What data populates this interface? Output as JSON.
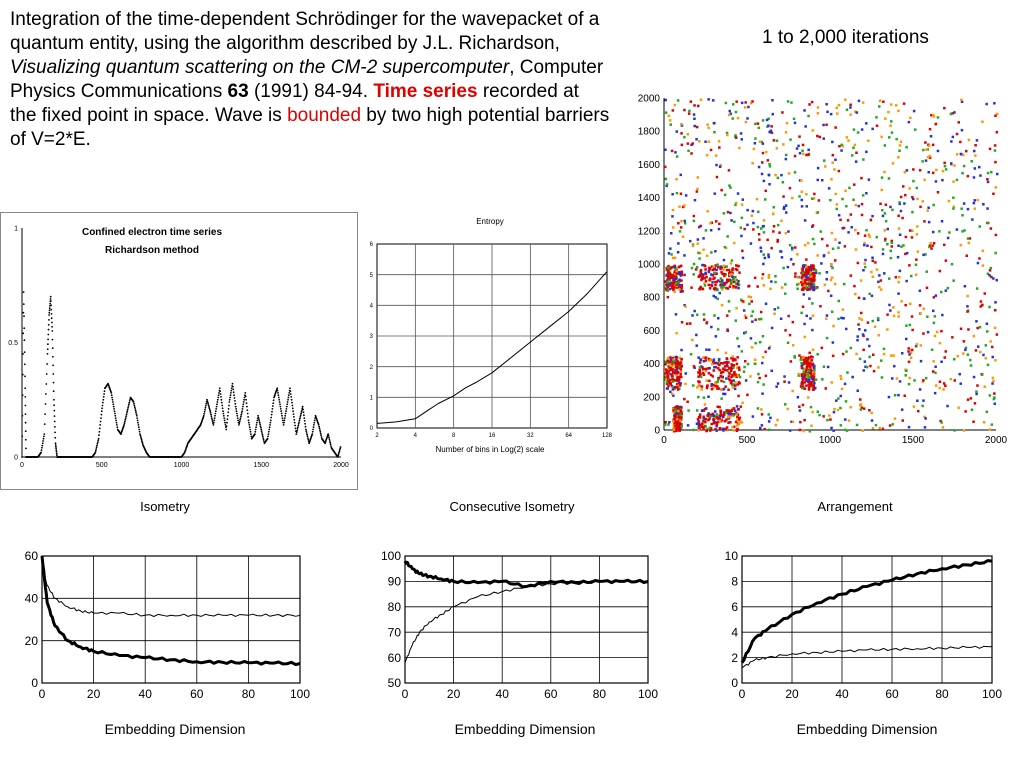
{
  "intro": {
    "p1": "Integration of the time-dependent Schrödinger for the wavepacket of a quantum entity, using the algorithm described by J.L. Richardson, ",
    "p2_italic": "Visualizing quantum scattering on the CM-2 supercomputer",
    "p3": ", Computer Physics Communications ",
    "p4_bold": "63",
    "p5": " (1991) 84-94. ",
    "p6_boldred": "Time series",
    "p7": " recorded at the fixed point in space. Wave is ",
    "p8_red": "bounded",
    "p9": " by two high potential barriers of V=2*E."
  },
  "iterations_label": "1 to 2,000 iterations",
  "colors": {
    "red": "#e00000",
    "green": "#22aa22",
    "blue": "#2233dd",
    "orange": "#ff9900"
  },
  "chart_data": [
    {
      "type": "line",
      "id": "timeseries",
      "title": "Confined electron time series",
      "subtitle": "Richardson method",
      "x_ticks": [
        "0",
        "500",
        "1000",
        "1500",
        "2000"
      ],
      "y_ticks": [
        "0",
        "0.5",
        "1"
      ],
      "xlim": [
        0,
        2000
      ],
      "ylim": [
        0,
        1
      ],
      "series": [
        {
          "x": [
            0,
            10,
            20,
            25,
            30,
            40,
            60,
            80,
            100,
            120,
            140,
            160,
            170,
            180,
            190,
            200,
            210,
            220,
            230,
            240,
            260,
            280,
            300,
            320,
            340,
            360,
            380,
            400,
            420,
            440,
            460,
            480,
            500,
            520,
            540,
            560,
            580,
            600,
            620,
            640,
            660,
            680,
            700,
            720,
            740,
            760,
            780,
            800,
            820,
            840,
            860,
            880,
            900,
            920,
            940,
            960,
            980,
            1000,
            1020,
            1040,
            1060,
            1080,
            1100,
            1120,
            1140,
            1160,
            1180,
            1200,
            1220,
            1240,
            1260,
            1280,
            1300,
            1320,
            1340,
            1360,
            1380,
            1400,
            1420,
            1440,
            1460,
            1480,
            1500,
            1520,
            1540,
            1560,
            1580,
            1600,
            1620,
            1640,
            1660,
            1680,
            1700,
            1720,
            1740,
            1760,
            1780,
            1800,
            1820,
            1840,
            1860,
            1880,
            1900,
            1920,
            1940,
            1960,
            1980,
            2000
          ],
          "y": [
            0,
            0.72,
            0.3,
            0.0,
            0,
            0,
            0,
            0,
            0,
            0.02,
            0.1,
            0.45,
            0.62,
            0.7,
            0.55,
            0.25,
            0.06,
            0,
            0,
            0,
            0,
            0,
            0,
            0,
            0,
            0,
            0,
            0,
            0,
            0,
            0.02,
            0.08,
            0.2,
            0.3,
            0.32,
            0.28,
            0.2,
            0.12,
            0.1,
            0.14,
            0.2,
            0.26,
            0.24,
            0.18,
            0.1,
            0.05,
            0.02,
            0,
            0,
            0,
            0,
            0,
            0,
            0,
            0,
            0,
            0,
            0,
            0.02,
            0.06,
            0.08,
            0.1,
            0.12,
            0.14,
            0.18,
            0.25,
            0.2,
            0.14,
            0.22,
            0.3,
            0.2,
            0.12,
            0.24,
            0.32,
            0.22,
            0.14,
            0.2,
            0.28,
            0.16,
            0.08,
            0.1,
            0.18,
            0.12,
            0.06,
            0.08,
            0.16,
            0.26,
            0.3,
            0.22,
            0.14,
            0.22,
            0.3,
            0.2,
            0.1,
            0.16,
            0.22,
            0.12,
            0.06,
            0.1,
            0.18,
            0.14,
            0.08,
            0.06,
            0.1,
            0.04,
            0.02,
            0.0,
            0.05
          ]
        }
      ]
    },
    {
      "type": "line",
      "id": "entropy",
      "title": "Entropy",
      "xlabel": "Number of bins in Log(2) scale",
      "x_ticks": [
        "2",
        "4",
        "8",
        "16",
        "32",
        "64",
        "128"
      ],
      "y_ticks": [
        "0",
        "1",
        "2",
        "3",
        "4",
        "5",
        "6"
      ],
      "xlim": [
        1,
        7
      ],
      "ylim": [
        0,
        6
      ],
      "series": [
        {
          "x": [
            1,
            1.5,
            2,
            2.3,
            2.6,
            3,
            3.3,
            3.6,
            4,
            4.5,
            5,
            5.5,
            6,
            6.5,
            7
          ],
          "y": [
            0.15,
            0.2,
            0.3,
            0.55,
            0.8,
            1.05,
            1.3,
            1.5,
            1.8,
            2.3,
            2.8,
            3.3,
            3.8,
            4.4,
            5.1
          ]
        }
      ]
    },
    {
      "type": "scatter",
      "id": "recurrence",
      "x_ticks": [
        "0",
        "500",
        "1000",
        "1500",
        "2000"
      ],
      "y_ticks": [
        "0",
        "200",
        "400",
        "600",
        "800",
        "1000",
        "1200",
        "1400",
        "1600",
        "1800",
        "2000"
      ],
      "xlim": [
        0,
        2000
      ],
      "ylim": [
        0,
        2000
      ],
      "series_colors": [
        "red",
        "green",
        "blue",
        "orange"
      ]
    },
    {
      "type": "line",
      "id": "isometry",
      "title": "Isometry",
      "xlabel": "Embedding Dimension",
      "x_ticks": [
        "0",
        "20",
        "40",
        "60",
        "80",
        "100"
      ],
      "y_ticks": [
        "0",
        "20",
        "40",
        "60"
      ],
      "xlim": [
        0,
        100
      ],
      "ylim": [
        0,
        60
      ],
      "series": [
        {
          "x": [
            0,
            2,
            5,
            10,
            15,
            20,
            30,
            40,
            50,
            60,
            70,
            80,
            90,
            100
          ],
          "y": [
            60,
            38,
            27,
            20,
            17,
            15,
            13,
            12,
            11,
            10,
            9.8,
            9.6,
            9.4,
            9.2
          ],
          "weight": "thick"
        },
        {
          "x": [
            0,
            2,
            5,
            10,
            15,
            20,
            30,
            40,
            50,
            60,
            70,
            80,
            90,
            100
          ],
          "y": [
            55,
            46,
            40,
            36,
            34,
            33,
            33,
            32,
            32,
            32,
            32,
            32,
            32,
            32
          ],
          "weight": "thin"
        }
      ]
    },
    {
      "type": "line",
      "id": "consecutive-isometry",
      "title": "Consecutive Isometry",
      "xlabel": "Embedding Dimension",
      "x_ticks": [
        "0",
        "20",
        "40",
        "60",
        "80",
        "100"
      ],
      "y_ticks": [
        "50",
        "60",
        "70",
        "80",
        "90",
        "100"
      ],
      "xlim": [
        0,
        100
      ],
      "ylim": [
        50,
        100
      ],
      "series": [
        {
          "x": [
            0,
            3,
            6,
            10,
            15,
            20,
            30,
            40,
            50,
            60,
            70,
            80,
            90,
            100
          ],
          "y": [
            98,
            95,
            93,
            92,
            91,
            90,
            89.5,
            90,
            88,
            90,
            89.5,
            90,
            90,
            90
          ],
          "weight": "thick"
        },
        {
          "x": [
            0,
            3,
            6,
            10,
            15,
            20,
            30,
            40,
            50,
            60,
            70,
            80,
            90,
            100
          ],
          "y": [
            58,
            65,
            70,
            74,
            77,
            80,
            84,
            86,
            88,
            89,
            90,
            90,
            90,
            90
          ],
          "weight": "thin"
        }
      ]
    },
    {
      "type": "line",
      "id": "arrangement",
      "title": "Arrangement",
      "xlabel": "Embedding Dimension",
      "x_ticks": [
        "0",
        "20",
        "40",
        "60",
        "80",
        "100"
      ],
      "y_ticks": [
        "0",
        "2",
        "4",
        "6",
        "8",
        "10"
      ],
      "xlim": [
        0,
        100
      ],
      "ylim": [
        0,
        10
      ],
      "series": [
        {
          "x": [
            0,
            5,
            10,
            20,
            30,
            40,
            50,
            60,
            70,
            80,
            90,
            100
          ],
          "y": [
            1.6,
            3.5,
            4.2,
            5.4,
            6.3,
            7.0,
            7.6,
            8.1,
            8.6,
            9.0,
            9.3,
            9.6
          ],
          "weight": "thick"
        },
        {
          "x": [
            0,
            5,
            10,
            20,
            30,
            40,
            50,
            60,
            70,
            80,
            90,
            100
          ],
          "y": [
            1.2,
            1.8,
            2.0,
            2.3,
            2.4,
            2.5,
            2.6,
            2.65,
            2.7,
            2.75,
            2.8,
            2.85
          ],
          "weight": "thin"
        }
      ]
    }
  ]
}
